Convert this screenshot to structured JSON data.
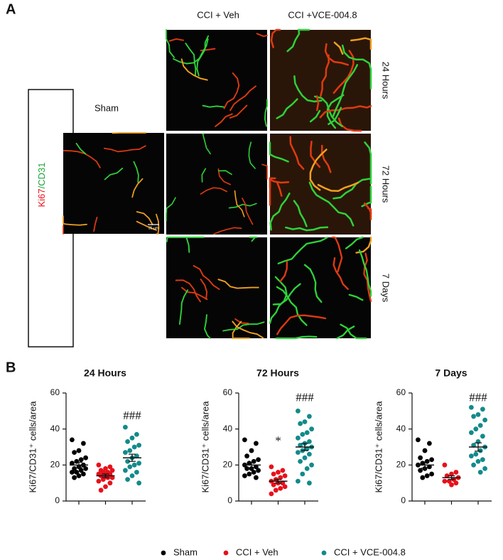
{
  "panel_a": {
    "label": "A",
    "columns": [
      "CCI + Veh",
      "CCI +VCE-004.8"
    ],
    "rows": [
      "24 Hours",
      "72 Hours",
      "7 Days"
    ],
    "sham_label": "Sham",
    "stain": {
      "ki67": "Ki67",
      "cd31": "/CD31"
    },
    "scale_bar": "25 µm"
  },
  "panel_b": {
    "label": "B"
  },
  "groups": [
    {
      "name": "Sham",
      "color": "#000000"
    },
    {
      "name": "CCI + Veh",
      "color": "#e8101a"
    },
    {
      "name": "CCI + VCE-004.8",
      "color": "#138a8a"
    }
  ],
  "chart_data": [
    {
      "type": "strip",
      "title": "24 Hours",
      "y_label": "Ki67/CD31⁺ cells/area",
      "ylim": [
        0,
        60
      ],
      "yticks": [
        0,
        20,
        40,
        60
      ],
      "series": [
        {
          "values": [
            34,
            32,
            28,
            27,
            24,
            23,
            22,
            21,
            20,
            19,
            18,
            18,
            17,
            16,
            16,
            15,
            14,
            13
          ],
          "mean": 20,
          "sem": 1.5
        },
        {
          "values": [
            20,
            19,
            18,
            17,
            17,
            16,
            16,
            15,
            15,
            14,
            14,
            13,
            13,
            12,
            11,
            10,
            8,
            6
          ],
          "mean": 14,
          "sem": 1
        },
        {
          "values": [
            41,
            37,
            35,
            33,
            31,
            30,
            28,
            27,
            25,
            24,
            22,
            21,
            20,
            19,
            17,
            16,
            14,
            12,
            10
          ],
          "mean": 24,
          "sem": 2
        }
      ],
      "annotations": [
        {
          "text": "###",
          "series": 2,
          "y": 47
        }
      ]
    },
    {
      "type": "strip",
      "title": "72 Hours",
      "y_label": "Ki67/CD31⁺ cells/area",
      "ylim": [
        0,
        60
      ],
      "yticks": [
        0,
        20,
        40,
        60
      ],
      "series": [
        {
          "values": [
            34,
            32,
            28,
            25,
            23,
            22,
            21,
            20,
            19,
            18,
            18,
            17,
            16,
            15,
            14,
            13
          ],
          "mean": 20,
          "sem": 1.5
        },
        {
          "values": [
            19,
            17,
            16,
            15,
            14,
            13,
            12,
            11,
            10,
            10,
            9,
            8,
            7,
            6,
            4
          ],
          "mean": 11,
          "sem": 1
        },
        {
          "values": [
            50,
            47,
            44,
            43,
            40,
            38,
            37,
            35,
            33,
            32,
            31,
            30,
            29,
            28,
            27,
            26,
            24,
            22,
            20,
            18,
            15,
            11,
            10
          ],
          "mean": 30,
          "sem": 2
        }
      ],
      "annotations": [
        {
          "text": "*",
          "series": 1,
          "y": 33
        },
        {
          "text": "###",
          "series": 2,
          "y": 57
        }
      ]
    },
    {
      "type": "strip",
      "title": "7 Days",
      "y_label": "Ki67/CD31⁺ cells/area",
      "ylim": [
        0,
        60
      ],
      "yticks": [
        0,
        20,
        40,
        60
      ],
      "series": [
        {
          "values": [
            34,
            32,
            28,
            24,
            23,
            22,
            21,
            20,
            19,
            18,
            17,
            15,
            14,
            13
          ],
          "mean": 20,
          "sem": 1.7
        },
        {
          "values": [
            20,
            16,
            15,
            14,
            13,
            12,
            11,
            11,
            10,
            9
          ],
          "mean": 13,
          "sem": 1
        },
        {
          "values": [
            52,
            51,
            48,
            47,
            45,
            42,
            40,
            38,
            36,
            33,
            31,
            30,
            28,
            26,
            25,
            23,
            22,
            20,
            18,
            16
          ],
          "mean": 30,
          "sem": 2.3
        }
      ],
      "annotations": [
        {
          "text": "###",
          "series": 2,
          "y": 57
        }
      ]
    }
  ]
}
